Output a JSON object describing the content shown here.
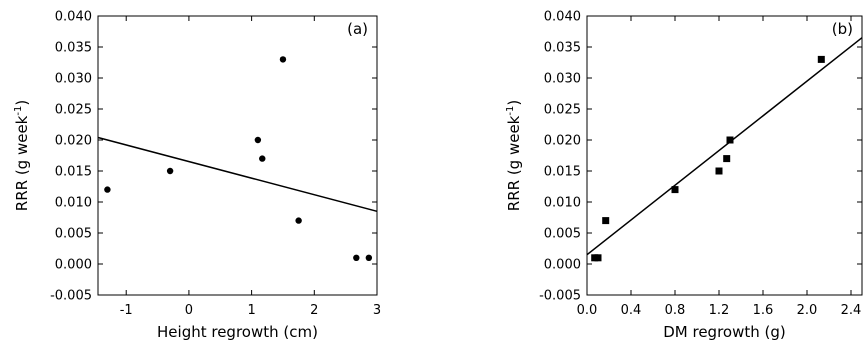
{
  "chart_data": [
    {
      "type": "scatter",
      "panel_label": "(a)",
      "xlabel": "Height regrowth (cm)",
      "ylabel": {
        "main": "RRR (g week",
        "sup": "-1",
        "close": ")"
      },
      "xlim": [
        -1.45,
        3.0
      ],
      "ylim": [
        -0.005,
        0.04
      ],
      "xticks": [
        -1,
        0,
        1,
        2,
        3
      ],
      "xtick_labels": [
        "-1",
        "0",
        "1",
        "2",
        "3"
      ],
      "yticks": [
        -0.005,
        0.0,
        0.005,
        0.01,
        0.015,
        0.02,
        0.025,
        0.03,
        0.035,
        0.04
      ],
      "ytick_labels": [
        "-0.005",
        "0.000",
        "0.005",
        "0.010",
        "0.015",
        "0.020",
        "0.025",
        "0.030",
        "0.035",
        "0.040"
      ],
      "marker": "circle",
      "points": [
        {
          "x": -1.3,
          "y": 0.012
        },
        {
          "x": -0.3,
          "y": 0.015
        },
        {
          "x": 1.1,
          "y": 0.02
        },
        {
          "x": 1.17,
          "y": 0.017
        },
        {
          "x": 1.5,
          "y": 0.033
        },
        {
          "x": 1.75,
          "y": 0.007
        },
        {
          "x": 2.67,
          "y": 0.001
        },
        {
          "x": 2.87,
          "y": 0.001
        }
      ],
      "fit_line": {
        "x": [
          -1.45,
          3.0
        ],
        "y": [
          0.0204,
          0.0085
        ]
      }
    },
    {
      "type": "scatter",
      "panel_label": "(b)",
      "xlabel": "DM regrowth (g)",
      "ylabel": {
        "main": "RRR (g week",
        "sup": "-1",
        "close": ")"
      },
      "xlim": [
        0.0,
        2.5
      ],
      "ylim": [
        -0.005,
        0.04
      ],
      "xticks": [
        0.0,
        0.4,
        0.8,
        1.2,
        1.6,
        2.0,
        2.4
      ],
      "xtick_labels": [
        "0.0",
        "0.4",
        "0.8",
        "1.2",
        "1.6",
        "2.0",
        "2.4"
      ],
      "yticks": [
        -0.005,
        0.0,
        0.005,
        0.01,
        0.015,
        0.02,
        0.025,
        0.03,
        0.035,
        0.04
      ],
      "ytick_labels": [
        "-0.005",
        "0.000",
        "0.005",
        "0.010",
        "0.015",
        "0.020",
        "0.025",
        "0.030",
        "0.035",
        "0.040"
      ],
      "marker": "square",
      "points": [
        {
          "x": 0.07,
          "y": 0.001
        },
        {
          "x": 0.1,
          "y": 0.001
        },
        {
          "x": 0.17,
          "y": 0.007
        },
        {
          "x": 0.8,
          "y": 0.012
        },
        {
          "x": 1.2,
          "y": 0.015
        },
        {
          "x": 1.27,
          "y": 0.017
        },
        {
          "x": 1.3,
          "y": 0.02
        },
        {
          "x": 2.13,
          "y": 0.033
        }
      ],
      "fit_line": {
        "x": [
          0.0,
          2.5
        ],
        "y": [
          0.0015,
          0.0365
        ]
      }
    }
  ]
}
